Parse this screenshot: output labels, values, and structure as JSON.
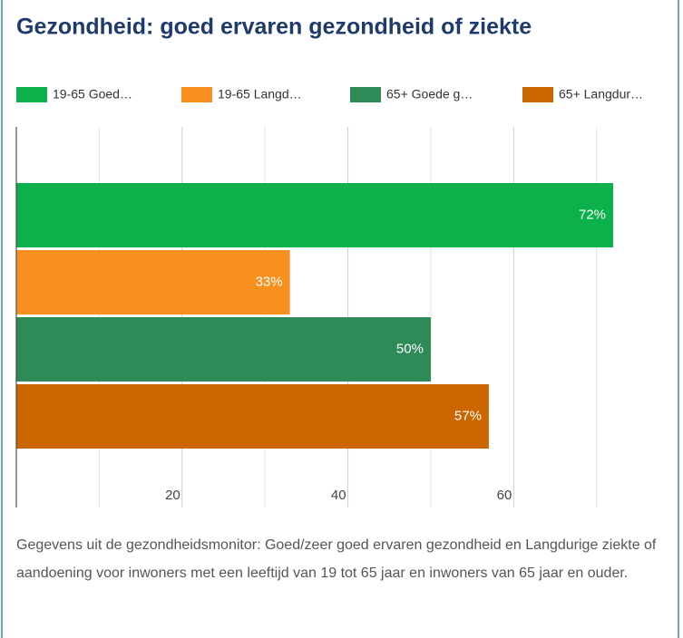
{
  "chart_data": {
    "type": "hbar",
    "title": "Gezondheid: goed ervaren gezondheid of ziekte",
    "categories": [
      null
    ],
    "series": [
      {
        "name": "19-65 Goed…",
        "color": "#0db14b",
        "values": [
          72
        ],
        "value_labels": [
          "72%"
        ]
      },
      {
        "name": "19-65 Langd…",
        "color": "#f7901e",
        "values": [
          33
        ],
        "value_labels": [
          "33%"
        ]
      },
      {
        "name": "65+ Goede g…",
        "color": "#2e8b57",
        "values": [
          50
        ],
        "value_labels": [
          "50%"
        ]
      },
      {
        "name": "65+ Langdur…",
        "color": "#cc6600",
        "values": [
          57
        ],
        "value_labels": [
          "57%"
        ]
      }
    ],
    "xlim": [
      0,
      79
    ],
    "xticks": [
      20,
      40,
      60
    ],
    "xticks_minor": [
      10,
      30,
      50,
      70
    ],
    "grid": true,
    "legend": "top",
    "note": "Gegevens uit de gezondheidsmonitor: Goed/zeer goed ervaren gezondheid en Langdurige ziekte of aandoening voor inwoners met een leeftijd van 19 tot 65 jaar en inwoners van 65 jaar en ouder."
  }
}
